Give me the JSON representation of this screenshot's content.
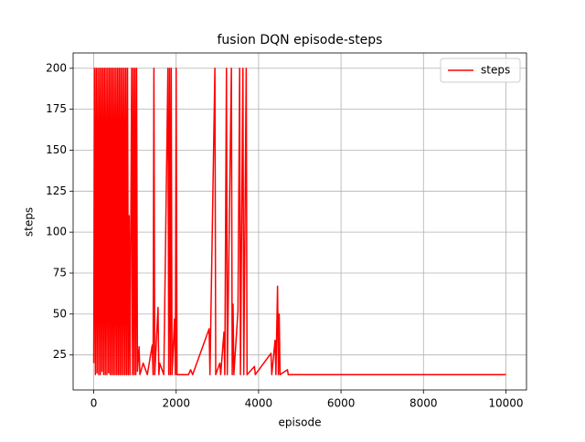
{
  "chart_data": {
    "type": "line",
    "title": "fusion DQN episode-steps",
    "x_label": "episode",
    "y_label": "steps",
    "x": [
      0,
      20,
      40,
      60,
      80,
      100,
      120,
      140,
      160,
      180,
      200,
      220,
      240,
      260,
      280,
      300,
      320,
      340,
      360,
      380,
      400,
      420,
      440,
      460,
      480,
      500,
      520,
      540,
      560,
      580,
      600,
      620,
      640,
      660,
      680,
      700,
      720,
      740,
      760,
      780,
      800,
      820,
      840,
      860,
      880,
      920,
      940,
      960,
      980,
      1000,
      1020,
      1040,
      1060,
      1100,
      1120,
      1200,
      1300,
      1420,
      1440,
      1460,
      1480,
      1560,
      1580,
      1600,
      1700,
      1800,
      1820,
      1840,
      1860,
      1880,
      1900,
      1960,
      1980,
      2000,
      2020,
      2300,
      2350,
      2400,
      2800,
      2820,
      2940,
      2960,
      3060,
      3080,
      3160,
      3180,
      3220,
      3240,
      3340,
      3360,
      3380,
      3400,
      3500,
      3540,
      3560,
      3620,
      3640,
      3700,
      3720,
      3900,
      3920,
      4300,
      4320,
      4400,
      4420,
      4460,
      4480,
      4500,
      4520,
      4700,
      4720,
      10000
    ],
    "series": [
      {
        "name": "steps",
        "color": "#ff0000",
        "values": [
          20,
          200,
          13,
          200,
          14,
          200,
          13,
          200,
          13,
          200,
          15,
          200,
          13,
          200,
          13,
          200,
          13,
          200,
          14,
          200,
          13,
          200,
          13,
          200,
          13,
          200,
          13,
          200,
          13,
          200,
          13,
          200,
          13,
          200,
          13,
          200,
          13,
          200,
          13,
          200,
          13,
          200,
          13,
          110,
          13,
          200,
          13,
          200,
          13,
          200,
          13,
          200,
          15,
          30,
          13,
          20,
          13,
          31,
          13,
          200,
          13,
          54,
          13,
          20,
          13,
          200,
          13,
          200,
          13,
          200,
          13,
          47,
          13,
          200,
          13,
          13,
          16,
          13,
          41,
          13,
          200,
          13,
          20,
          13,
          39,
          13,
          200,
          13,
          200,
          13,
          56,
          13,
          52,
          200,
          13,
          200,
          13,
          200,
          13,
          18,
          13,
          26,
          13,
          34,
          13,
          67,
          13,
          50,
          13,
          16,
          13,
          13
        ]
      }
    ],
    "xlim": [
      -500,
      10500
    ],
    "ylim": [
      3.65,
      209.35
    ],
    "xticks": [
      0,
      2000,
      4000,
      6000,
      8000,
      10000
    ],
    "yticks": [
      25,
      50,
      75,
      100,
      125,
      150,
      175,
      200
    ],
    "grid": true,
    "legend": "upper right"
  }
}
